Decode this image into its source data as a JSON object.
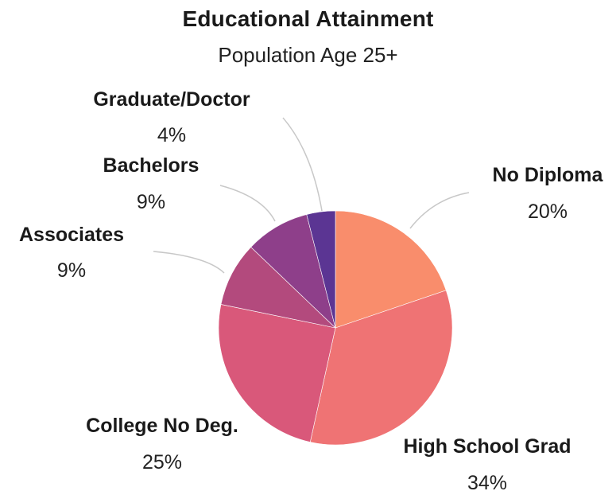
{
  "chart_data": {
    "type": "pie",
    "title": "Educational Attainment",
    "subtitle": "Population Age 25+",
    "slices": [
      {
        "label": "No Diploma",
        "value": 20,
        "value_label": "20%",
        "color": "#f98d6c"
      },
      {
        "label": "High School Grad",
        "value": 34,
        "value_label": "34%",
        "color": "#ef7374"
      },
      {
        "label": "College No Deg.",
        "value": 25,
        "value_label": "25%",
        "color": "#d9587a"
      },
      {
        "label": "Associates",
        "value": 9,
        "value_label": "9%",
        "color": "#b34a7d"
      },
      {
        "label": "Bachelors",
        "value": 9,
        "value_label": "9%",
        "color": "#8e3f8a"
      },
      {
        "label": "Graduate/Doctor",
        "value": 4,
        "value_label": "4%",
        "color": "#5b3593"
      }
    ],
    "start_angle": "12 o'clock",
    "direction": "clockwise",
    "leader_line_color": "#c8c8c8"
  }
}
